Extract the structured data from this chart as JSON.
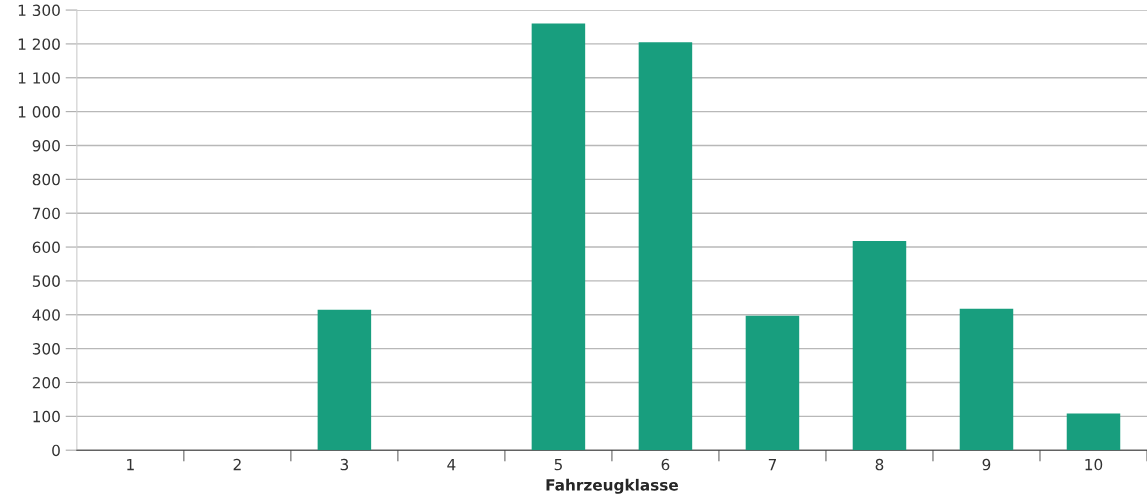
{
  "chart_data": {
    "type": "bar",
    "xlabel": "Fahrzeugklasse",
    "categories": [
      "1",
      "2",
      "3",
      "4",
      "5",
      "6",
      "7",
      "8",
      "9",
      "10"
    ],
    "values": [
      0,
      0,
      415,
      0,
      1260,
      1205,
      397,
      618,
      418,
      108
    ],
    "color": "#189e7e",
    "ylim": [
      0,
      1300
    ],
    "yticks": [
      0,
      100,
      200,
      300,
      400,
      500,
      600,
      700,
      800,
      900,
      {
        "value": 1000,
        "label": "1 000"
      },
      {
        "value": 1100,
        "label": "1 100"
      },
      {
        "value": 1200,
        "label": "1 200"
      },
      {
        "value": 1300,
        "label": "1 300"
      }
    ],
    "grid": "y"
  }
}
